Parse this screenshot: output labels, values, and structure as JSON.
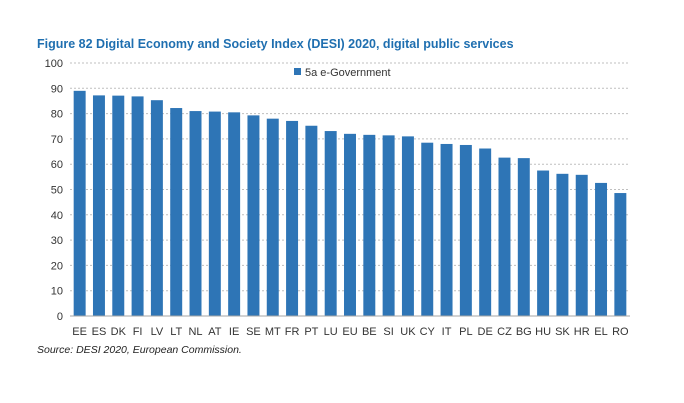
{
  "figure": {
    "title": "Figure 82 Digital Economy and Society Index (DESI) 2020, digital public services",
    "source": "Source: DESI 2020, European Commission."
  },
  "colors": {
    "bar": "#2e75b6",
    "grid": "#bfbfbf",
    "axis": "#a6a6a6"
  },
  "chart_data": {
    "type": "bar",
    "title": "Figure 82 Digital Economy and Society Index (DESI) 2020, digital public services",
    "xlabel": "",
    "ylabel": "",
    "ylim": [
      0,
      100
    ],
    "yticks": [
      0,
      10,
      20,
      30,
      40,
      50,
      60,
      70,
      80,
      90,
      100
    ],
    "grid": true,
    "legend_position": "top-center",
    "categories": [
      "EE",
      "ES",
      "DK",
      "FI",
      "LV",
      "LT",
      "NL",
      "AT",
      "IE",
      "SE",
      "MT",
      "FR",
      "PT",
      "LU",
      "EU",
      "BE",
      "SI",
      "UK",
      "CY",
      "IT",
      "PL",
      "DE",
      "CZ",
      "BG",
      "HU",
      "SK",
      "HR",
      "EL",
      "RO"
    ],
    "series": [
      {
        "name": "5a e-Government",
        "values": [
          89.0,
          87.2,
          87.1,
          86.8,
          85.3,
          82.2,
          81.0,
          80.8,
          80.5,
          79.3,
          78.0,
          77.1,
          75.2,
          73.1,
          72.0,
          71.6,
          71.4,
          71.0,
          68.5,
          68.0,
          67.6,
          66.2,
          62.6,
          62.4,
          57.5,
          56.2,
          55.8,
          52.6,
          48.6
        ]
      }
    ]
  }
}
